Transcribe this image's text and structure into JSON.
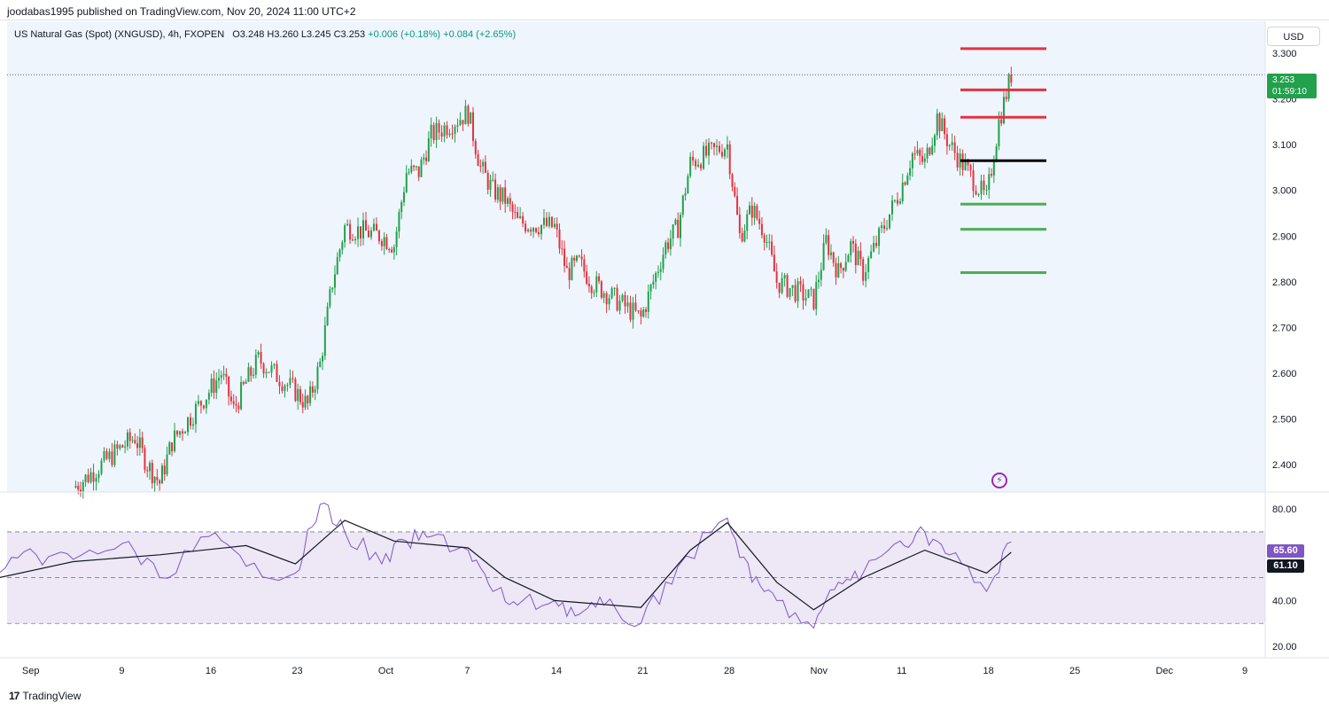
{
  "header": {
    "published_by": "joodabas1995 published on TradingView.com, Nov 20, 2024 11:00 UTC+2"
  },
  "legend": {
    "symbol": "US Natural Gas (Spot) (XNGUSD), 4h, FXOPEN",
    "ohlc": "O3.248 H3.260 L3.245 C3.253",
    "change1": "+0.006 (+0.18%)",
    "change2": "+0.084 (+2.65%)"
  },
  "currency": "USD",
  "last_price": {
    "value": "3.253",
    "countdown": "01:59:10"
  },
  "rsi_badges": {
    "rsi": "65.60",
    "rsi_ma": "61.10"
  },
  "footer": {
    "brand": "TradingView"
  },
  "icons": {
    "alert": "lightning-alert-icon",
    "logo": "tradingview-logo-icon"
  },
  "colors": {
    "up": "#22a04b",
    "down": "#e5323f",
    "resistance": "#e5323f",
    "support": "#4caf50",
    "pivot": "#000000",
    "rsi_line": "#7e57c2",
    "rsi_ma": "#131722",
    "price_bg": "#eef5fd",
    "rsi_band": "#ede7f6"
  },
  "chart_data": [
    {
      "type": "candlestick",
      "title": "US Natural Gas (Spot) (XNGUSD), 4h, FXOPEN",
      "ylabel": "USD",
      "ylim": [
        2.34,
        3.37
      ],
      "y_ticks": [
        "3.300",
        "3.200",
        "3.100",
        "3.000",
        "2.900",
        "2.800",
        "2.700",
        "2.600",
        "2.500",
        "2.400"
      ],
      "x_ticks": [
        "Sep",
        "9",
        "16",
        "23",
        "Oct",
        "7",
        "14",
        "21",
        "28",
        "Nov",
        "11",
        "18",
        "25",
        "Dec",
        "9"
      ],
      "close_path": [
        [
          "Sep 05",
          2.35
        ],
        [
          "Sep 06",
          2.37
        ],
        [
          "Sep 09",
          2.44
        ],
        [
          "Sep 10",
          2.46
        ],
        [
          "Sep 11",
          2.4
        ],
        [
          "Sep 12",
          2.36
        ],
        [
          "Sep 13",
          2.45
        ],
        [
          "Sep 16",
          2.56
        ],
        [
          "Sep 17",
          2.6
        ],
        [
          "Sep 18",
          2.52
        ],
        [
          "Sep 19",
          2.58
        ],
        [
          "Sep 20",
          2.63
        ],
        [
          "Sep 23",
          2.56
        ],
        [
          "Sep 24",
          2.53
        ],
        [
          "Sep 25",
          2.62
        ],
        [
          "Sep 26",
          2.8
        ],
        [
          "Sep 27",
          2.92
        ],
        [
          "Sep 30",
          2.9
        ],
        [
          "Oct 01",
          2.88
        ],
        [
          "Oct 02",
          3.04
        ],
        [
          "Oct 03",
          3.04
        ],
        [
          "Oct 04",
          3.12
        ],
        [
          "Oct 07",
          3.17
        ],
        [
          "Oct 08",
          3.05
        ],
        [
          "Oct 09",
          3.0
        ],
        [
          "Oct 10",
          2.98
        ],
        [
          "Oct 11",
          2.93
        ],
        [
          "Oct 14",
          2.92
        ],
        [
          "Oct 15",
          2.82
        ],
        [
          "Oct 16",
          2.84
        ],
        [
          "Oct 17",
          2.8
        ],
        [
          "Oct 18",
          2.78
        ],
        [
          "Oct 21",
          2.72
        ],
        [
          "Oct 22",
          2.8
        ],
        [
          "Oct 23",
          2.88
        ],
        [
          "Oct 24",
          2.92
        ],
        [
          "Oct 25",
          3.06
        ],
        [
          "Oct 28",
          3.1
        ],
        [
          "Oct 29",
          2.9
        ],
        [
          "Oct 30",
          2.96
        ],
        [
          "Oct 31",
          2.91
        ],
        [
          "Nov 01",
          2.8
        ],
        [
          "Nov 04",
          2.76
        ],
        [
          "Nov 05",
          2.89
        ],
        [
          "Nov 06",
          2.82
        ],
        [
          "Nov 07",
          2.88
        ],
        [
          "Nov 08",
          2.82
        ],
        [
          "Nov 11",
          3.0
        ],
        [
          "Nov 12",
          3.08
        ],
        [
          "Nov 13",
          3.06
        ],
        [
          "Nov 14",
          3.16
        ],
        [
          "Nov 15",
          3.1
        ],
        [
          "Nov 18",
          2.98
        ],
        [
          "Nov 19",
          3.15
        ],
        [
          "Nov 20",
          3.253
        ]
      ],
      "horizontal_levels": [
        {
          "price": 3.31,
          "color": "#e5323f"
        },
        {
          "price": 3.22,
          "color": "#e5323f"
        },
        {
          "price": 3.16,
          "color": "#e5323f"
        },
        {
          "price": 3.065,
          "color": "#000000"
        },
        {
          "price": 2.97,
          "color": "#4caf50"
        },
        {
          "price": 2.915,
          "color": "#4caf50"
        },
        {
          "price": 2.82,
          "color": "#4caf50"
        }
      ],
      "last": 3.253
    },
    {
      "type": "line",
      "title": "RSI",
      "ylim": [
        15,
        87
      ],
      "y_ticks": [
        "80.00",
        "40.00",
        "20.00"
      ],
      "bands": {
        "upper": 70,
        "middle": 50,
        "lower": 30
      },
      "series": [
        {
          "role": "rsi",
          "values": [
            [
              "Aug 30",
              52
            ],
            [
              "Sep 02",
              60
            ],
            [
              "Sep 05",
              58
            ],
            [
              "Sep 09",
              65
            ],
            [
              "Sep 12",
              50
            ],
            [
              "Sep 16",
              68
            ],
            [
              "Sep 19",
              55
            ],
            [
              "Sep 23",
              52
            ],
            [
              "Sep 25",
              82
            ],
            [
              "Sep 27",
              70
            ],
            [
              "Sep 30",
              56
            ],
            [
              "Oct 02",
              66
            ],
            [
              "Oct 04",
              68
            ],
            [
              "Oct 07",
              62
            ],
            [
              "Oct 09",
              44
            ],
            [
              "Oct 11",
              38
            ],
            [
              "Oct 14",
              40
            ],
            [
              "Oct 16",
              34
            ],
            [
              "Oct 18",
              38
            ],
            [
              "Oct 21",
              30
            ],
            [
              "Oct 24",
              55
            ],
            [
              "Oct 28",
              76
            ],
            [
              "Oct 30",
              48
            ],
            [
              "Nov 01",
              40
            ],
            [
              "Nov 04",
              28
            ],
            [
              "Nov 06",
              48
            ],
            [
              "Nov 08",
              52
            ],
            [
              "Nov 11",
              66
            ],
            [
              "Nov 13",
              70
            ],
            [
              "Nov 15",
              60
            ],
            [
              "Nov 18",
              44
            ],
            [
              "Nov 20",
              65.6
            ]
          ]
        },
        {
          "role": "rsi-ma",
          "values": [
            [
              "Aug 30",
              50
            ],
            [
              "Sep 05",
              57
            ],
            [
              "Sep 12",
              60
            ],
            [
              "Sep 19",
              64
            ],
            [
              "Sep 23",
              56
            ],
            [
              "Sep 27",
              75
            ],
            [
              "Oct 01",
              66
            ],
            [
              "Oct 07",
              63
            ],
            [
              "Oct 10",
              50
            ],
            [
              "Oct 14",
              40
            ],
            [
              "Oct 21",
              37
            ],
            [
              "Oct 25",
              62
            ],
            [
              "Oct 28",
              74
            ],
            [
              "Nov 01",
              48
            ],
            [
              "Nov 04",
              36
            ],
            [
              "Nov 08",
              50
            ],
            [
              "Nov 13",
              62
            ],
            [
              "Nov 18",
              52
            ],
            [
              "Nov 20",
              61.1
            ]
          ]
        }
      ]
    }
  ]
}
